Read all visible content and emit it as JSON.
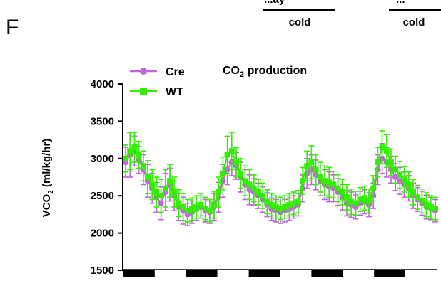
{
  "panel_label": "F",
  "top_annotations": [
    {
      "top_text": "...ay",
      "label": "cold"
    },
    {
      "top_text": "...",
      "label": "cold"
    }
  ],
  "chart_data": {
    "type": "line",
    "title": "CO₂ production",
    "title_parts": {
      "base": "CO",
      "sub": "2",
      "rest": " production"
    },
    "ylabel": "VCO₂ (ml/kg/hr)",
    "ylabel_parts": {
      "base": "VCO",
      "sub": "2",
      "rest": " (ml/kg/hr)"
    },
    "xlabel": "",
    "ylim": [
      1500,
      4000
    ],
    "yticks": [
      "1500",
      "2000",
      "2500",
      "3000",
      "3500",
      "4000"
    ],
    "grid": false,
    "legend_position": "top-left",
    "light_dark_bar": [
      "dark",
      "light",
      "dark",
      "light",
      "dark",
      "light",
      "dark",
      "light",
      "dark",
      "light"
    ],
    "series": [
      {
        "name": "Cre",
        "color": "#bf64dc",
        "marker": "circle",
        "values": [
          2950,
          3050,
          3100,
          2980,
          2850,
          2700,
          2600,
          2480,
          2400,
          2550,
          2650,
          2500,
          2350,
          2300,
          2250,
          2280,
          2320,
          2350,
          2300,
          2280,
          2350,
          2480,
          2700,
          2850,
          2950,
          2900,
          2750,
          2650,
          2580,
          2550,
          2500,
          2450,
          2380,
          2320,
          2300,
          2280,
          2300,
          2320,
          2350,
          2380,
          2600,
          2800,
          2850,
          2780,
          2700,
          2650,
          2620,
          2600,
          2550,
          2480,
          2400,
          2380,
          2350,
          2400,
          2420,
          2380,
          2500,
          2850,
          3000,
          2950,
          2850,
          2750,
          2700,
          2650,
          2600,
          2500,
          2450,
          2400,
          2350,
          2330,
          2300
        ],
        "errors": [
          200,
          300,
          200,
          180,
          200,
          220,
          200,
          200,
          220,
          250,
          220,
          200,
          180,
          180,
          150,
          150,
          150,
          150,
          150,
          150,
          180,
          200,
          220,
          200,
          180,
          180,
          200,
          200,
          200,
          180,
          170,
          170,
          160,
          150,
          150,
          150,
          150,
          150,
          150,
          150,
          180,
          200,
          200,
          200,
          200,
          200,
          200,
          180,
          180,
          170,
          170,
          170,
          160,
          160,
          160,
          160,
          170,
          200,
          200,
          200,
          180,
          180,
          180,
          170,
          170,
          170,
          160,
          160,
          160,
          150,
          150
        ]
      },
      {
        "name": "WT",
        "color": "#33ee00",
        "marker": "square",
        "values": [
          3000,
          3100,
          3150,
          3050,
          2900,
          2750,
          2650,
          2550,
          2500,
          2600,
          2700,
          2550,
          2400,
          2350,
          2300,
          2320,
          2350,
          2380,
          2330,
          2300,
          2380,
          2550,
          2800,
          3050,
          3100,
          2950,
          2800,
          2700,
          2650,
          2600,
          2550,
          2500,
          2420,
          2380,
          2350,
          2330,
          2350,
          2380,
          2400,
          2420,
          2700,
          2900,
          2950,
          2850,
          2750,
          2700,
          2680,
          2650,
          2600,
          2550,
          2480,
          2420,
          2400,
          2450,
          2470,
          2430,
          2600,
          2950,
          3150,
          3100,
          2950,
          2850,
          2780,
          2720,
          2650,
          2550,
          2480,
          2430,
          2380,
          2350,
          2330
        ],
        "errors": [
          180,
          250,
          200,
          180,
          200,
          220,
          200,
          200,
          220,
          250,
          220,
          200,
          180,
          180,
          150,
          150,
          150,
          150,
          150,
          150,
          180,
          200,
          220,
          250,
          250,
          200,
          200,
          200,
          200,
          180,
          170,
          170,
          160,
          150,
          150,
          150,
          150,
          150,
          150,
          150,
          180,
          200,
          220,
          200,
          200,
          200,
          200,
          180,
          180,
          170,
          170,
          170,
          160,
          160,
          160,
          160,
          170,
          200,
          220,
          220,
          180,
          180,
          180,
          170,
          170,
          170,
          160,
          160,
          160,
          150,
          150
        ]
      }
    ]
  }
}
